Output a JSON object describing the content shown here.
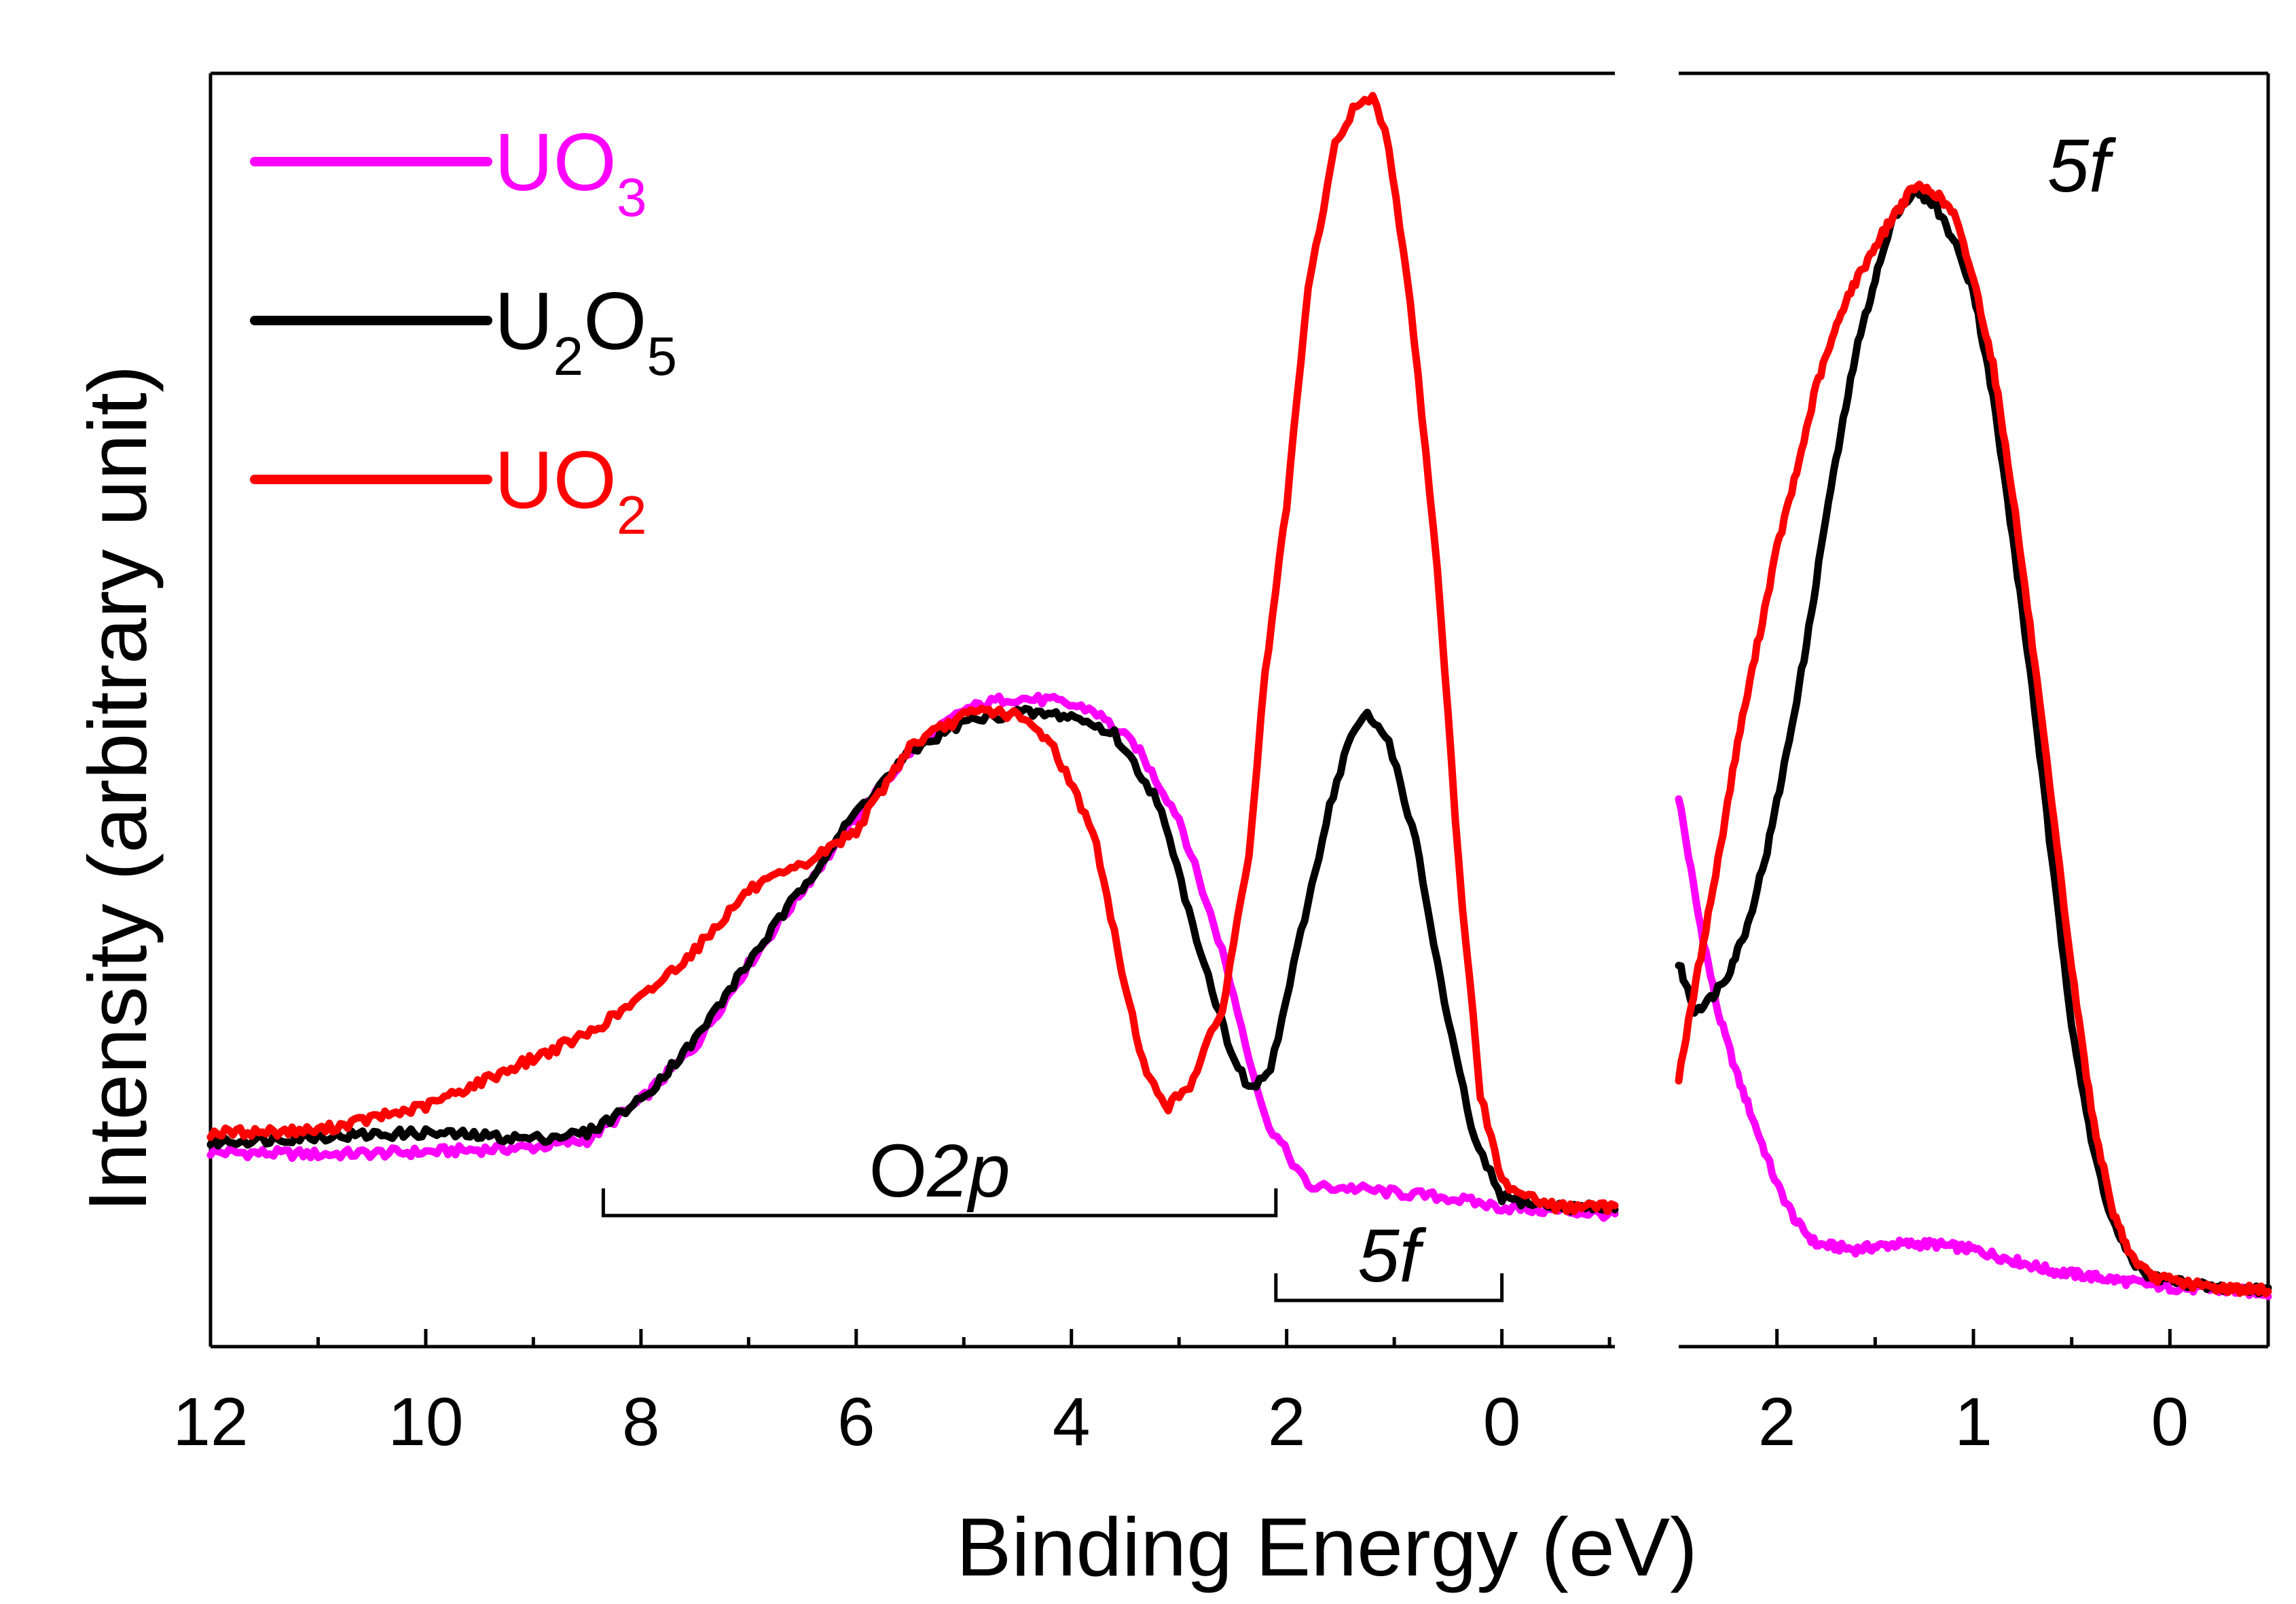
{
  "chart_data": [
    {
      "id": "main",
      "type": "line",
      "xlabel": "Binding Energy (eV)",
      "ylabel": "Intensity (arbitrary unit)",
      "xlim": [
        12,
        -1.05
      ],
      "ylim": [
        0,
        1.06
      ],
      "x_ticks": [
        12,
        10,
        8,
        6,
        4,
        2,
        0
      ],
      "x_tick_labels": [
        "12",
        "10",
        "8",
        "6",
        "4",
        "2",
        "0"
      ],
      "annotations": [
        {
          "label": "O",
          "label_italic": "2p",
          "range": [
            8.35,
            2.1
          ]
        },
        {
          "label_italic": "5f",
          "range": [
            2.1,
            0
          ]
        }
      ],
      "series": [
        {
          "name": "UO3",
          "color": "#ff00ff",
          "points": [
            [
              12,
              0.162
            ],
            [
              11,
              0.16
            ],
            [
              10,
              0.162
            ],
            [
              9,
              0.166
            ],
            [
              8.5,
              0.172
            ],
            [
              8,
              0.205
            ],
            [
              7.5,
              0.25
            ],
            [
              7,
              0.318
            ],
            [
              6.5,
              0.38
            ],
            [
              6,
              0.44
            ],
            [
              5.5,
              0.495
            ],
            [
              5,
              0.53
            ],
            [
              4.6,
              0.54
            ],
            [
              4.2,
              0.538
            ],
            [
              3.8,
              0.53
            ],
            [
              3.4,
              0.5
            ],
            [
              3,
              0.44
            ],
            [
              2.6,
              0.33
            ],
            [
              2.2,
              0.19
            ],
            [
              1.8,
              0.133
            ],
            [
              1.4,
              0.132
            ],
            [
              1,
              0.128
            ],
            [
              0.5,
              0.124
            ],
            [
              0,
              0.116
            ],
            [
              -1.05,
              0.11
            ]
          ]
        },
        {
          "name": "U2O5",
          "color": "#000000",
          "points": [
            [
              12,
              0.17
            ],
            [
              11,
              0.175
            ],
            [
              10,
              0.178
            ],
            [
              9,
              0.173
            ],
            [
              8.5,
              0.178
            ],
            [
              8,
              0.205
            ],
            [
              7.5,
              0.255
            ],
            [
              7,
              0.32
            ],
            [
              6.5,
              0.382
            ],
            [
              6,
              0.445
            ],
            [
              5.5,
              0.495
            ],
            [
              5,
              0.52
            ],
            [
              4.5,
              0.528
            ],
            [
              4,
              0.525
            ],
            [
              3.6,
              0.51
            ],
            [
              3.2,
              0.455
            ],
            [
              2.8,
              0.33
            ],
            [
              2.55,
              0.255
            ],
            [
              2.35,
              0.213
            ],
            [
              2.15,
              0.23
            ],
            [
              1.9,
              0.33
            ],
            [
              1.6,
              0.45
            ],
            [
              1.4,
              0.51
            ],
            [
              1.25,
              0.525
            ],
            [
              1.05,
              0.505
            ],
            [
              0.8,
              0.42
            ],
            [
              0.5,
              0.27
            ],
            [
              0.25,
              0.17
            ],
            [
              0,
              0.124
            ],
            [
              -0.5,
              0.116
            ],
            [
              -1.05,
              0.116
            ]
          ]
        },
        {
          "name": "UO2",
          "color": "#ff0000",
          "points": [
            [
              12,
              0.178
            ],
            [
              11,
              0.18
            ],
            [
              10,
              0.2
            ],
            [
              9,
              0.24
            ],
            [
              8.5,
              0.26
            ],
            [
              8,
              0.29
            ],
            [
              7.5,
              0.33
            ],
            [
              7,
              0.38
            ],
            [
              6.5,
              0.4
            ],
            [
              6,
              0.43
            ],
            [
              5.5,
              0.5
            ],
            [
              5,
              0.525
            ],
            [
              4.8,
              0.53
            ],
            [
              4.5,
              0.525
            ],
            [
              4.2,
              0.505
            ],
            [
              3.8,
              0.43
            ],
            [
              3.5,
              0.3
            ],
            [
              3.3,
              0.225
            ],
            [
              3.1,
              0.2
            ],
            [
              2.9,
              0.218
            ],
            [
              2.6,
              0.28
            ],
            [
              2.35,
              0.41
            ],
            [
              2.2,
              0.56
            ],
            [
              2,
              0.7
            ],
            [
              1.8,
              0.88
            ],
            [
              1.55,
              1.0
            ],
            [
              1.35,
              1.035
            ],
            [
              1.2,
              1.04
            ],
            [
              1.05,
              1.0
            ],
            [
              0.85,
              0.87
            ],
            [
              0.6,
              0.65
            ],
            [
              0.4,
              0.4
            ],
            [
              0.2,
              0.21
            ],
            [
              0,
              0.137
            ],
            [
              -0.5,
              0.116
            ],
            [
              -1.05,
              0.116
            ]
          ]
        }
      ]
    },
    {
      "id": "inset",
      "type": "line",
      "title": "5f",
      "xlim": [
        2.5,
        -0.5
      ],
      "ylim": [
        -0.05,
        1.13
      ],
      "x_ticks": [
        2,
        1,
        0
      ],
      "x_tick_labels": [
        "2",
        "1",
        "0"
      ],
      "series": [
        {
          "name": "UO3",
          "color": "#ff00ff",
          "points": [
            [
              2.5,
              0.46
            ],
            [
              2.4,
              0.35
            ],
            [
              2.3,
              0.26
            ],
            [
              2.2,
              0.2
            ],
            [
              2.1,
              0.15
            ],
            [
              2,
              0.1
            ],
            [
              1.9,
              0.065
            ],
            [
              1.8,
              0.045
            ],
            [
              1.6,
              0.04
            ],
            [
              1.4,
              0.045
            ],
            [
              1.2,
              0.045
            ],
            [
              1,
              0.04
            ],
            [
              0.8,
              0.03
            ],
            [
              0.6,
              0.02
            ],
            [
              0.4,
              0.015
            ],
            [
              0.2,
              0.01
            ],
            [
              0,
              0.005
            ],
            [
              -0.5,
              0.0
            ]
          ]
        },
        {
          "name": "U2O5",
          "color": "#000000",
          "points": [
            [
              2.5,
              0.305
            ],
            [
              2.42,
              0.262
            ],
            [
              2.35,
              0.27
            ],
            [
              2.25,
              0.295
            ],
            [
              2.15,
              0.34
            ],
            [
              2.05,
              0.41
            ],
            [
              1.95,
              0.5
            ],
            [
              1.85,
              0.6
            ],
            [
              1.75,
              0.72
            ],
            [
              1.6,
              0.87
            ],
            [
              1.5,
              0.94
            ],
            [
              1.4,
              1.0
            ],
            [
              1.3,
              1.02
            ],
            [
              1.2,
              1.01
            ],
            [
              1.1,
              0.975
            ],
            [
              1,
              0.93
            ],
            [
              0.9,
              0.83
            ],
            [
              0.8,
              0.7
            ],
            [
              0.7,
              0.56
            ],
            [
              0.6,
              0.4
            ],
            [
              0.5,
              0.25
            ],
            [
              0.4,
              0.14
            ],
            [
              0.3,
              0.07
            ],
            [
              0.2,
              0.03
            ],
            [
              0.1,
              0.015
            ],
            [
              -0.2,
              0.005
            ],
            [
              -0.5,
              0.002
            ]
          ]
        },
        {
          "name": "UO2",
          "color": "#ff0000",
          "points": [
            [
              2.5,
              0.2
            ],
            [
              2.4,
              0.3
            ],
            [
              2.3,
              0.4
            ],
            [
              2.2,
              0.51
            ],
            [
              2.1,
              0.6
            ],
            [
              2,
              0.69
            ],
            [
              1.9,
              0.76
            ],
            [
              1.8,
              0.84
            ],
            [
              1.65,
              0.92
            ],
            [
              1.5,
              0.97
            ],
            [
              1.4,
              1.0
            ],
            [
              1.3,
              1.025
            ],
            [
              1.2,
              1.02
            ],
            [
              1.1,
              1.0
            ],
            [
              1,
              0.94
            ],
            [
              0.9,
              0.86
            ],
            [
              0.8,
              0.74
            ],
            [
              0.7,
              0.6
            ],
            [
              0.6,
              0.45
            ],
            [
              0.5,
              0.3
            ],
            [
              0.4,
              0.17
            ],
            [
              0.3,
              0.08
            ],
            [
              0.2,
              0.035
            ],
            [
              0.1,
              0.015
            ],
            [
              -0.2,
              0.005
            ],
            [
              -0.5,
              0.002
            ]
          ]
        }
      ]
    }
  ],
  "legend": {
    "position": "top-left",
    "entries": [
      {
        "base": "UO",
        "sub": "3",
        "color": "#ff00ff"
      },
      {
        "base": "U",
        "sub": "2",
        "base2": "O",
        "sub2": "5",
        "color": "#000000"
      },
      {
        "base": "UO",
        "sub": "2",
        "color": "#ff0000"
      }
    ]
  }
}
